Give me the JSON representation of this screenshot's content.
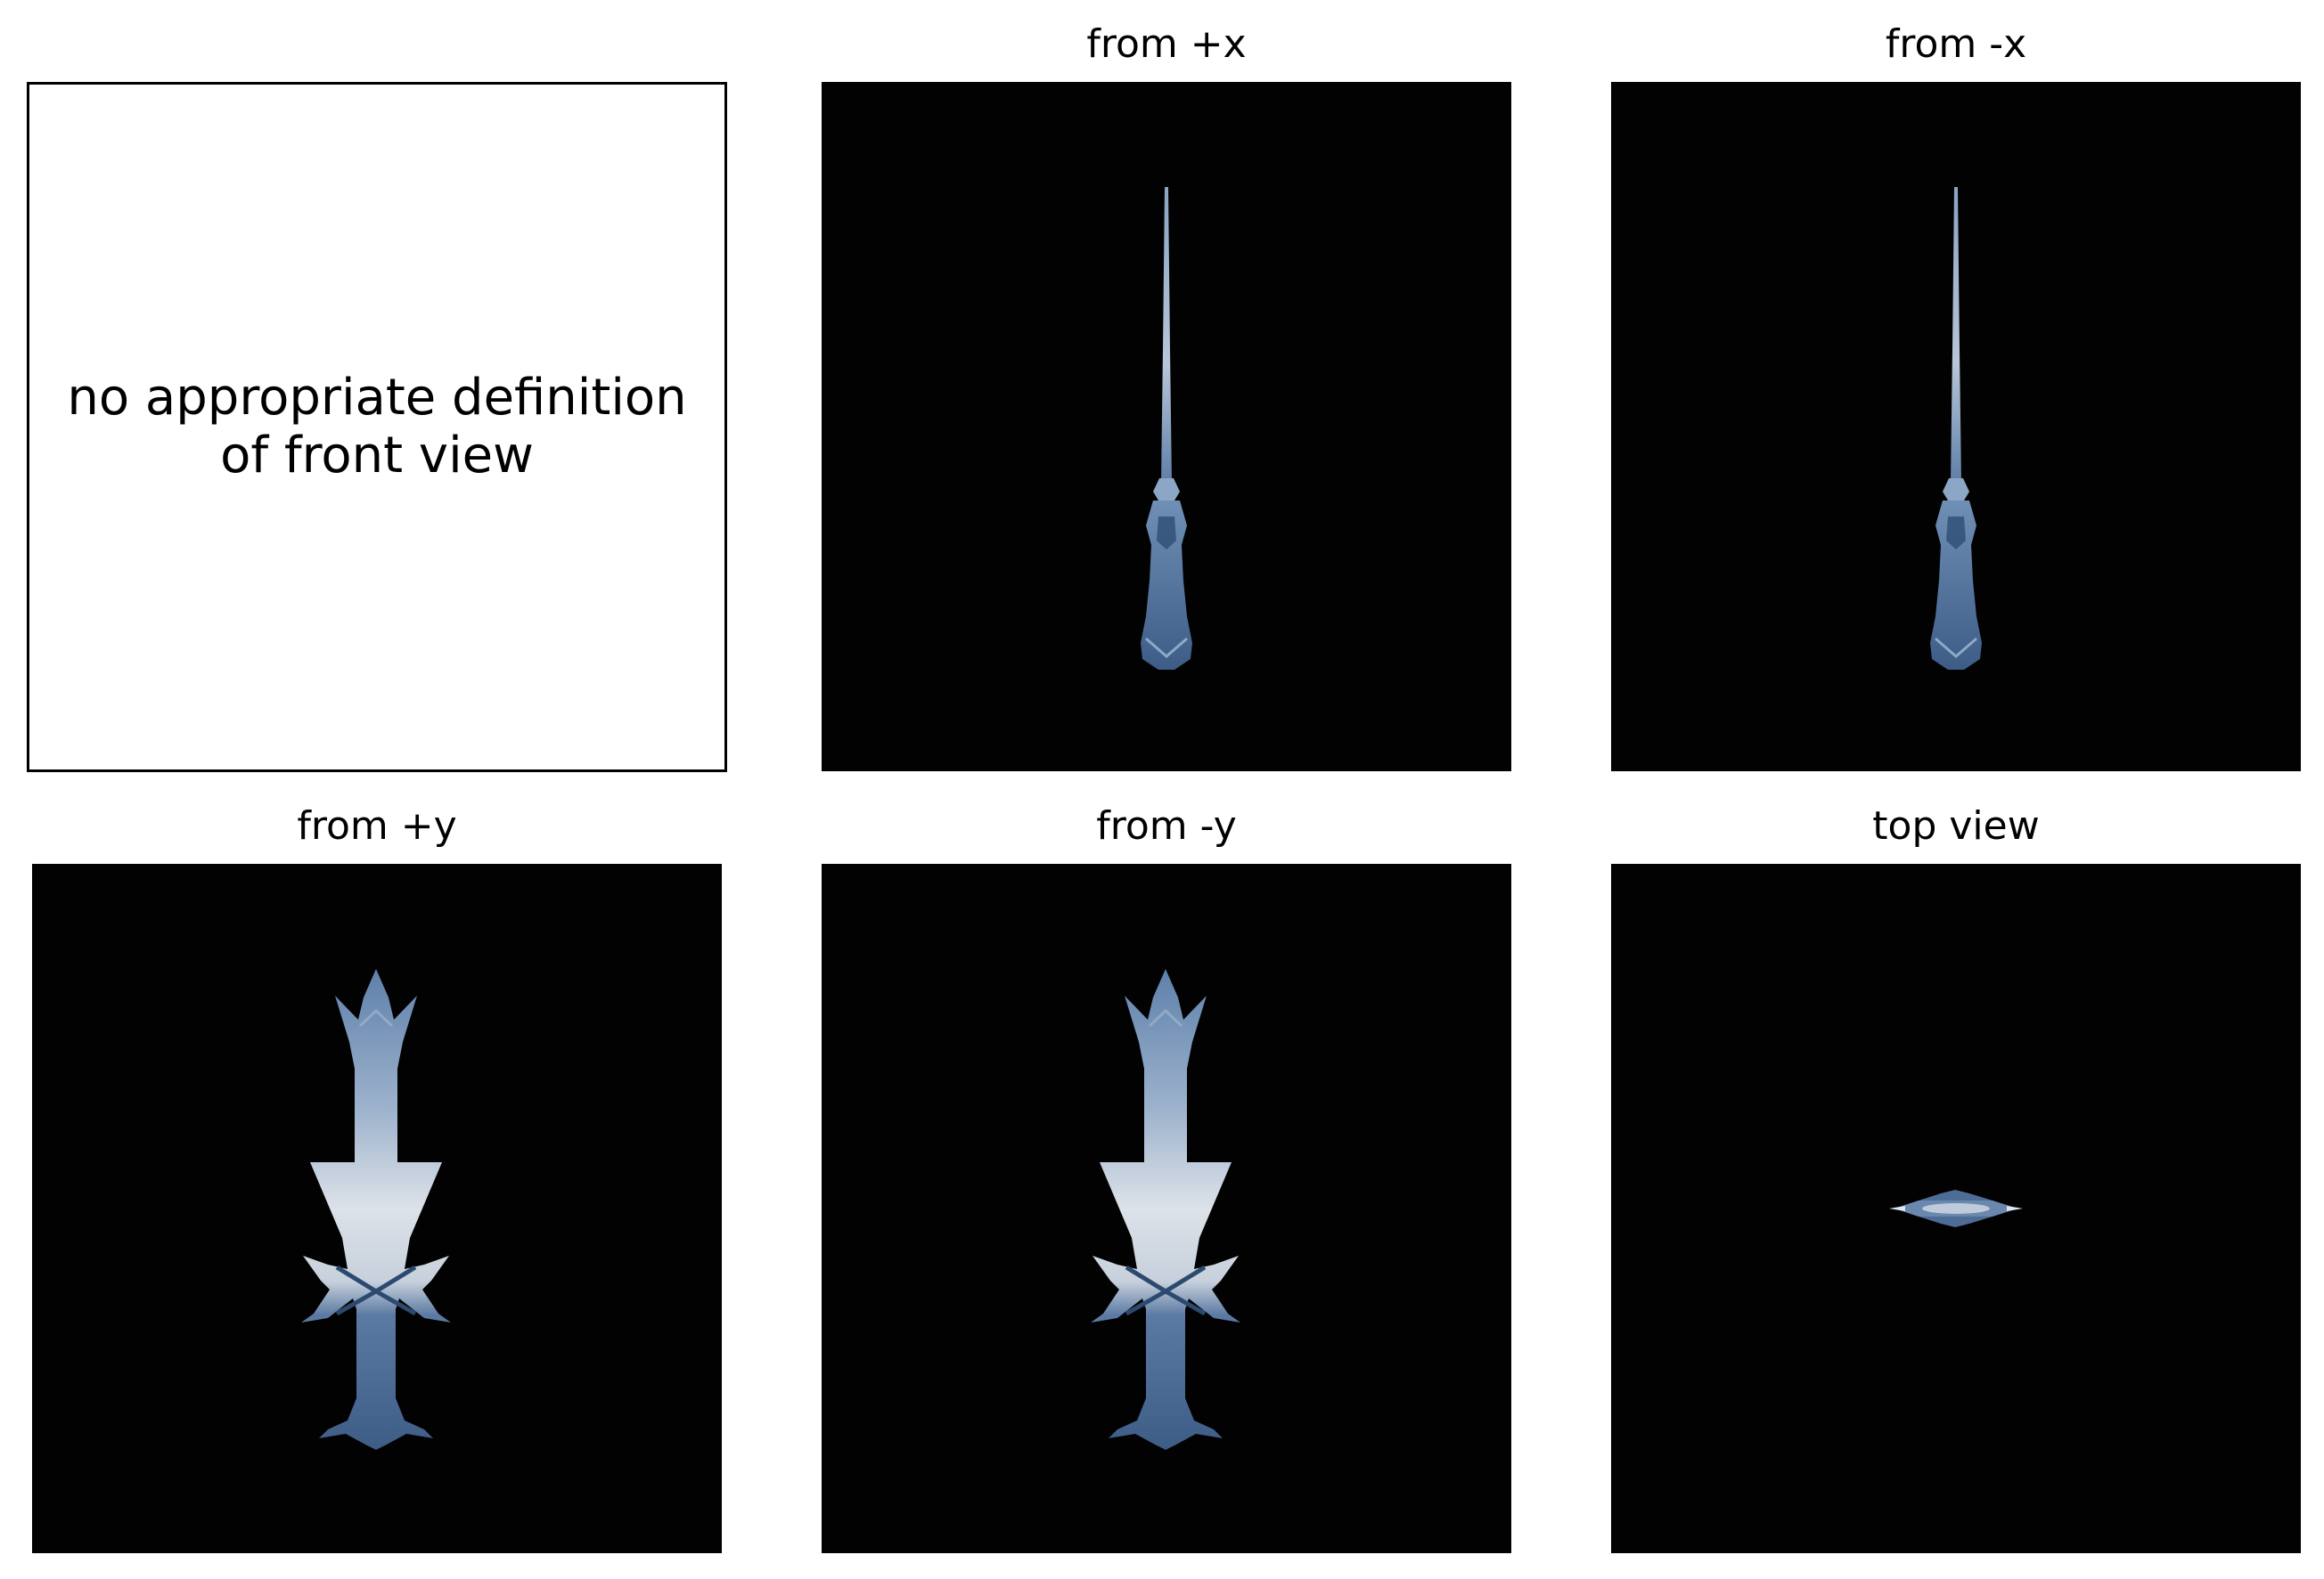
{
  "figure": {
    "panels": [
      {
        "id": "front",
        "title": "",
        "message": "no appropriate definition\nof front view"
      },
      {
        "id": "plus_x",
        "title": "from +x"
      },
      {
        "id": "minus_x",
        "title": "from -x"
      },
      {
        "id": "plus_y",
        "title": "from +y"
      },
      {
        "id": "minus_y",
        "title": "from -y"
      },
      {
        "id": "top",
        "title": "top view"
      }
    ]
  },
  "colors": {
    "render_background": "#020202",
    "object_blue": "#3f5f86",
    "object_light": "#d9dee6"
  }
}
